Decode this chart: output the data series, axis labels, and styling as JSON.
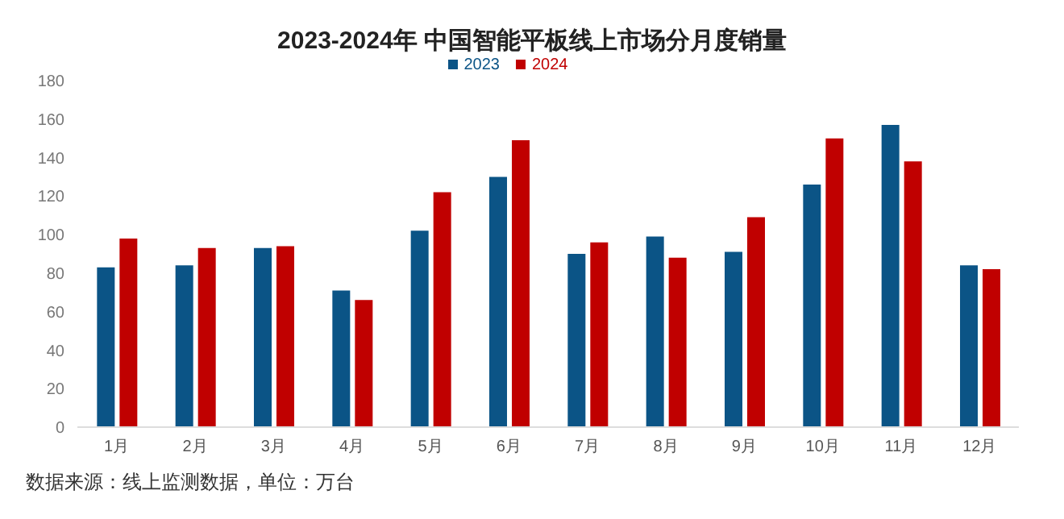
{
  "chart_data": {
    "type": "bar",
    "title": "2023-2024年 中国智能平板线上市场分月度销量",
    "categories": [
      "1月",
      "2月",
      "3月",
      "4月",
      "5月",
      "6月",
      "7月",
      "8月",
      "9月",
      "10月",
      "11月",
      "12月"
    ],
    "series": [
      {
        "name": "2023",
        "color": "#0b5486",
        "values": [
          83,
          84,
          93,
          71,
          102,
          130,
          90,
          99,
          91,
          126,
          157,
          84
        ]
      },
      {
        "name": "2024",
        "color": "#c00000",
        "values": [
          98,
          93,
          94,
          66,
          122,
          149,
          96,
          88,
          109,
          150,
          138,
          82
        ]
      }
    ],
    "ylim": [
      0,
      180
    ],
    "yticks": [
      0,
      20,
      40,
      60,
      80,
      100,
      120,
      140,
      160,
      180
    ],
    "grid": false,
    "legend": "top",
    "annotations": [
      "数据来源：线上监测数据，单位：万台"
    ]
  }
}
